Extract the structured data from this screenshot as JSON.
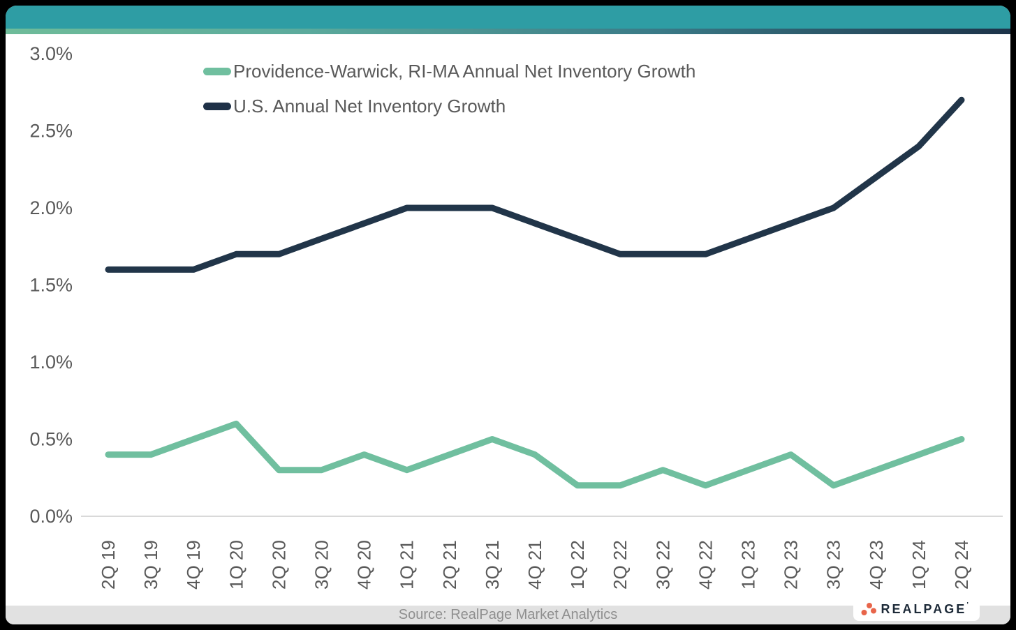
{
  "header": {
    "bar_color": "#2E9DA4",
    "strip_gradient_left": "#6FBC9A",
    "strip_gradient_right": "#1D3349"
  },
  "legend": [
    {
      "label": "Providence-Warwick, RI-MA Annual Net Inventory Growth",
      "color": "#70BF9F"
    },
    {
      "label": "U.S. Annual Net Inventory Growth",
      "color": "#1F3147"
    }
  ],
  "chart_data": {
    "type": "line",
    "categories": [
      "2Q 19",
      "3Q 19",
      "4Q 19",
      "1Q 20",
      "2Q 20",
      "3Q 20",
      "4Q 20",
      "1Q 21",
      "2Q 21",
      "3Q 21",
      "4Q 21",
      "1Q 22",
      "2Q 22",
      "3Q 22",
      "4Q 22",
      "1Q 23",
      "2Q 23",
      "3Q 23",
      "4Q 23",
      "1Q 24",
      "2Q 24"
    ],
    "series": [
      {
        "name": "Providence-Warwick, RI-MA Annual Net Inventory Growth",
        "color": "#70BF9F",
        "values": [
          0.4,
          0.4,
          0.5,
          0.6,
          0.3,
          0.3,
          0.4,
          0.3,
          0.4,
          0.5,
          0.4,
          0.2,
          0.2,
          0.3,
          0.2,
          0.3,
          0.4,
          0.2,
          0.3,
          0.4,
          0.5
        ]
      },
      {
        "name": "U.S. Annual Net Inventory Growth",
        "color": "#213549",
        "values": [
          1.6,
          1.6,
          1.6,
          1.7,
          1.7,
          1.8,
          1.9,
          2.0,
          2.0,
          2.0,
          1.9,
          1.8,
          1.7,
          1.7,
          1.7,
          1.8,
          1.9,
          2.0,
          2.2,
          2.4,
          2.7
        ]
      }
    ],
    "title": "",
    "xlabel": "",
    "ylabel": "",
    "ylim": [
      0.0,
      3.0
    ],
    "y_tick_step": 0.5,
    "y_tick_format": "percent_one_decimal",
    "y_tick_labels": [
      "0.0%",
      "0.5%",
      "1.0%",
      "1.5%",
      "2.0%",
      "2.5%",
      "3.0%"
    ],
    "grid": false,
    "legend_position": "top-left-inside",
    "axis_text_color": "#595959",
    "axis_line_color": "#d9d9d9"
  },
  "footer": {
    "source_text": "Source: RealPage Market Analytics"
  },
  "logo": {
    "text": "REALPAGE",
    "mark": "’",
    "dot_color": "#E8654A",
    "text_color": "#1D2A38"
  }
}
